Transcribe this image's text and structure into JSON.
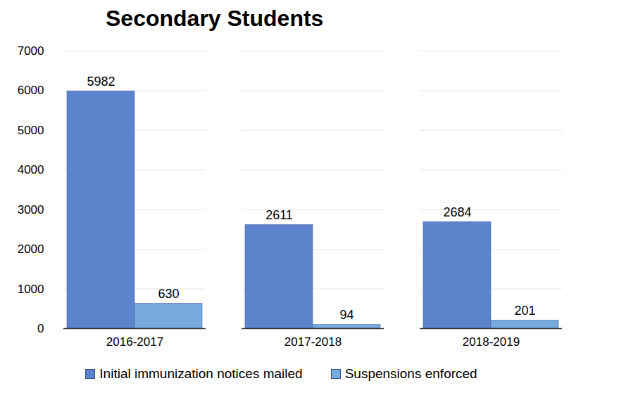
{
  "chart_data": {
    "type": "bar",
    "title": "Secondary Students",
    "categories": [
      "2016-2017",
      "2017-2018",
      "2018-2019"
    ],
    "series": [
      {
        "name": "Initial immunization notices mailed",
        "color": "#5b84cc",
        "values": [
          5982,
          2611,
          2684
        ]
      },
      {
        "name": "Suspensions enforced",
        "color": "#77aadd",
        "values": [
          630,
          94,
          201
        ]
      }
    ],
    "ylim": [
      0,
      7000
    ],
    "yticks": [
      0,
      1000,
      2000,
      3000,
      4000,
      5000,
      6000,
      7000
    ],
    "grid": true,
    "legend": "bottom",
    "data_labels": true
  }
}
